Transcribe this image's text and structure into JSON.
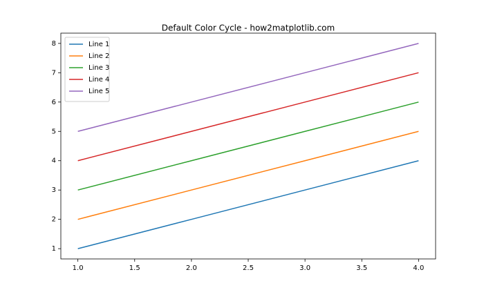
{
  "chart_data": {
    "type": "line",
    "title": "Default Color Cycle - how2matplotlib.com",
    "x": [
      1,
      2,
      3,
      4
    ],
    "series": [
      {
        "name": "Line 1",
        "color": "#1f77b4",
        "values": [
          1,
          2,
          3,
          4
        ]
      },
      {
        "name": "Line 2",
        "color": "#ff7f0e",
        "values": [
          2,
          3,
          4,
          5
        ]
      },
      {
        "name": "Line 3",
        "color": "#2ca02c",
        "values": [
          3,
          4,
          5,
          6
        ]
      },
      {
        "name": "Line 4",
        "color": "#d62728",
        "values": [
          4,
          5,
          6,
          7
        ]
      },
      {
        "name": "Line 5",
        "color": "#9467bd",
        "values": [
          5,
          6,
          7,
          8
        ]
      }
    ],
    "xlim": [
      0.85,
      4.15
    ],
    "xticks": [
      {
        "value": 1,
        "label": "1.0"
      },
      1.5,
      {
        "value": 2,
        "label": "2.0"
      },
      2.5,
      {
        "value": 3,
        "label": "3.0"
      },
      3.5,
      {
        "value": 4,
        "label": "4.0"
      }
    ],
    "ylim": [
      0.65,
      8.35
    ],
    "yticks": [
      1,
      2,
      3,
      4,
      5,
      6,
      7,
      8
    ],
    "legend": "upper left"
  }
}
